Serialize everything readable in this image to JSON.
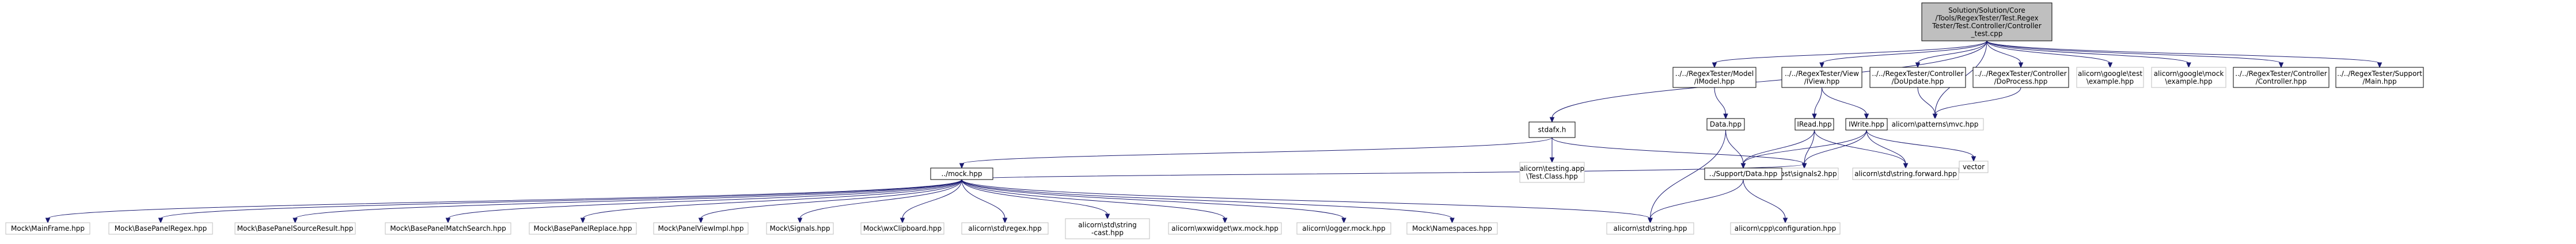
{
  "graph": {
    "nodes": {
      "root": {
        "lines": [
          "Solution/Solution/Core",
          "/Tools/RegexTester/Test.Regex",
          "Tester/Test.Controller/Controller",
          "_test.cpp"
        ],
        "external": false,
        "root": true
      },
      "stdafx": {
        "lines": [
          "stdafx.h"
        ],
        "external": false
      },
      "imodel": {
        "lines": [
          "../../RegexTester/Model",
          "/IModel.hpp"
        ],
        "external": false
      },
      "iview": {
        "lines": [
          "../../RegexTester/View",
          "/IView.hpp"
        ],
        "external": false
      },
      "doupdate": {
        "lines": [
          "../../RegexTester/Controller",
          "/DoUpdate.hpp"
        ],
        "external": false
      },
      "doprocess": {
        "lines": [
          "../../RegexTester/Controller",
          "/DoProcess.hpp"
        ],
        "external": false
      },
      "gtest_example": {
        "lines": [
          "alicorn\\google\\test",
          "\\example.hpp"
        ],
        "external": true
      },
      "gmock_example": {
        "lines": [
          "alicorn\\google\\mock",
          "\\example.hpp"
        ],
        "external": true
      },
      "controller_hpp": {
        "lines": [
          "../../RegexTester/Controller",
          "/Controller.hpp"
        ],
        "external": false
      },
      "support_main": {
        "lines": [
          "../../RegexTester/Support",
          "/Main.hpp"
        ],
        "external": false
      },
      "mvc": {
        "lines": [
          "alicorn\\patterns\\mvc.hpp"
        ],
        "external": true
      },
      "data_hpp": {
        "lines": [
          "Data.hpp"
        ],
        "external": false
      },
      "iread": {
        "lines": [
          "IRead.hpp"
        ],
        "external": false
      },
      "iwrite": {
        "lines": [
          "IWrite.hpp"
        ],
        "external": false
      },
      "mock_hpp": {
        "lines": [
          "../mock.hpp"
        ],
        "external": false
      },
      "testing_app": {
        "lines": [
          "alicorn\\testing.app",
          "\\Test.Class.hpp"
        ],
        "external": true
      },
      "signals2": {
        "lines": [
          "boost\\signals2.hpp"
        ],
        "external": true
      },
      "support_data": {
        "lines": [
          "../Support/Data.hpp"
        ],
        "external": false
      },
      "std_fwd": {
        "lines": [
          "alicorn\\std\\string.forward.hpp"
        ],
        "external": true
      },
      "vector": {
        "lines": [
          "vector"
        ],
        "external": true
      },
      "cpp_config": {
        "lines": [
          "alicorn\\cpp\\configuration.hpp"
        ],
        "external": true
      },
      "std_string": {
        "lines": [
          "alicorn\\std\\string.hpp"
        ],
        "external": true
      },
      "m_mainframe": {
        "lines": [
          "Mock\\MainFrame.hpp"
        ],
        "external": true
      },
      "m_basepanelregex": {
        "lines": [
          "Mock\\BasePanelRegex.hpp"
        ],
        "external": true
      },
      "m_basepanelsource": {
        "lines": [
          "Mock\\BasePanelSourceResult.hpp"
        ],
        "external": true
      },
      "m_basepanelmatch": {
        "lines": [
          "Mock\\BasePanelMatchSearch.hpp"
        ],
        "external": true
      },
      "m_basepanelreplace": {
        "lines": [
          "Mock\\BasePanelReplace.hpp"
        ],
        "external": true
      },
      "m_panelviewimpl": {
        "lines": [
          "Mock\\PanelViewImpl.hpp"
        ],
        "external": true
      },
      "m_signals": {
        "lines": [
          "Mock\\Signals.hpp"
        ],
        "external": true
      },
      "m_wxclipboard": {
        "lines": [
          "Mock\\wxClipboard.hpp"
        ],
        "external": true
      },
      "std_regex": {
        "lines": [
          "alicorn\\std\\regex.hpp"
        ],
        "external": true
      },
      "std_string_cast": {
        "lines": [
          "alicorn\\std\\string",
          "-cast.hpp"
        ],
        "external": true
      },
      "wx_mock": {
        "lines": [
          "alicorn\\wxwidget\\wx.mock.hpp"
        ],
        "external": true
      },
      "logger_mock": {
        "lines": [
          "alicorn\\logger.mock.hpp"
        ],
        "external": true
      },
      "m_namespaces": {
        "lines": [
          "Mock\\Namespaces.hpp"
        ],
        "external": true
      }
    },
    "edges": [
      [
        "root",
        "stdafx"
      ],
      [
        "root",
        "imodel"
      ],
      [
        "root",
        "iview"
      ],
      [
        "root",
        "mvc"
      ],
      [
        "root",
        "doupdate"
      ],
      [
        "root",
        "doprocess"
      ],
      [
        "root",
        "gtest_example"
      ],
      [
        "root",
        "gmock_example"
      ],
      [
        "root",
        "controller_hpp"
      ],
      [
        "root",
        "support_main"
      ],
      [
        "stdafx",
        "mock_hpp"
      ],
      [
        "stdafx",
        "testing_app"
      ],
      [
        "stdafx",
        "signals2"
      ],
      [
        "imodel",
        "data_hpp"
      ],
      [
        "data_hpp",
        "support_data"
      ],
      [
        "data_hpp",
        "std_string"
      ],
      [
        "iview",
        "iread"
      ],
      [
        "iview",
        "iwrite"
      ],
      [
        "iread",
        "support_data"
      ],
      [
        "iread",
        "signals2"
      ],
      [
        "iread",
        "std_fwd"
      ],
      [
        "iwrite",
        "support_data"
      ],
      [
        "iwrite",
        "signals2"
      ],
      [
        "iwrite",
        "std_fwd"
      ],
      [
        "iwrite",
        "vector"
      ],
      [
        "doupdate",
        "mvc"
      ],
      [
        "doprocess",
        "mvc"
      ],
      [
        "support_data",
        "std_string"
      ],
      [
        "support_data",
        "cpp_config"
      ],
      [
        "mock_hpp",
        "m_mainframe"
      ],
      [
        "mock_hpp",
        "m_basepanelregex"
      ],
      [
        "mock_hpp",
        "m_basepanelsource"
      ],
      [
        "mock_hpp",
        "m_basepanelmatch"
      ],
      [
        "mock_hpp",
        "m_basepanelreplace"
      ],
      [
        "mock_hpp",
        "m_panelviewimpl"
      ],
      [
        "mock_hpp",
        "m_signals"
      ],
      [
        "mock_hpp",
        "m_wxclipboard"
      ],
      [
        "mock_hpp",
        "std_regex"
      ],
      [
        "mock_hpp",
        "std_string_cast"
      ],
      [
        "mock_hpp",
        "wx_mock"
      ],
      [
        "mock_hpp",
        "logger_mock"
      ],
      [
        "mock_hpp",
        "m_namespaces"
      ],
      [
        "mock_hpp",
        "std_string"
      ],
      [
        "mock_hpp",
        "signals2"
      ]
    ]
  }
}
